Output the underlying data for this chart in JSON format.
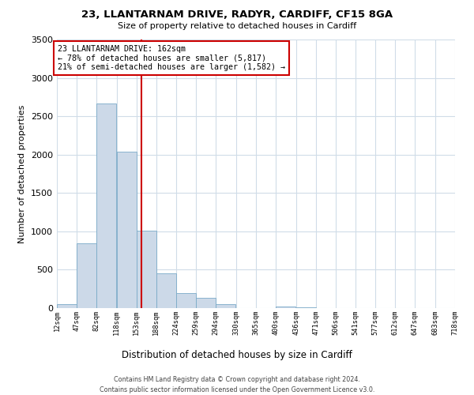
{
  "title": "23, LLANTARNAM DRIVE, RADYR, CARDIFF, CF15 8GA",
  "subtitle": "Size of property relative to detached houses in Cardiff",
  "xlabel": "Distribution of detached houses by size in Cardiff",
  "ylabel": "Number of detached properties",
  "bar_color": "#ccd9e8",
  "bar_edge_color": "#7aaac8",
  "background_color": "#ffffff",
  "grid_color": "#d0dce8",
  "bins": [
    12,
    47,
    82,
    118,
    153,
    188,
    224,
    259,
    294,
    330,
    365,
    400,
    436,
    471,
    506,
    541,
    577,
    612,
    647,
    683,
    718
  ],
  "counts": [
    55,
    840,
    2670,
    2040,
    1005,
    450,
    200,
    135,
    55,
    0,
    0,
    25,
    10,
    0,
    0,
    0,
    0,
    0,
    0,
    0
  ],
  "property_size": 162,
  "vline_color": "#cc0000",
  "annotation_box_color": "#cc0000",
  "annotation_line1": "23 LLANTARNAM DRIVE: 162sqm",
  "annotation_line2": "← 78% of detached houses are smaller (5,817)",
  "annotation_line3": "21% of semi-detached houses are larger (1,582) →",
  "ylim": [
    0,
    3500
  ],
  "yticks": [
    0,
    500,
    1000,
    1500,
    2000,
    2500,
    3000,
    3500
  ],
  "footer_text": "Contains HM Land Registry data © Crown copyright and database right 2024.\nContains public sector information licensed under the Open Government Licence v3.0.",
  "tick_labels": [
    "12sqm",
    "47sqm",
    "82sqm",
    "118sqm",
    "153sqm",
    "188sqm",
    "224sqm",
    "259sqm",
    "294sqm",
    "330sqm",
    "365sqm",
    "400sqm",
    "436sqm",
    "471sqm",
    "506sqm",
    "541sqm",
    "577sqm",
    "612sqm",
    "647sqm",
    "683sqm",
    "718sqm"
  ]
}
